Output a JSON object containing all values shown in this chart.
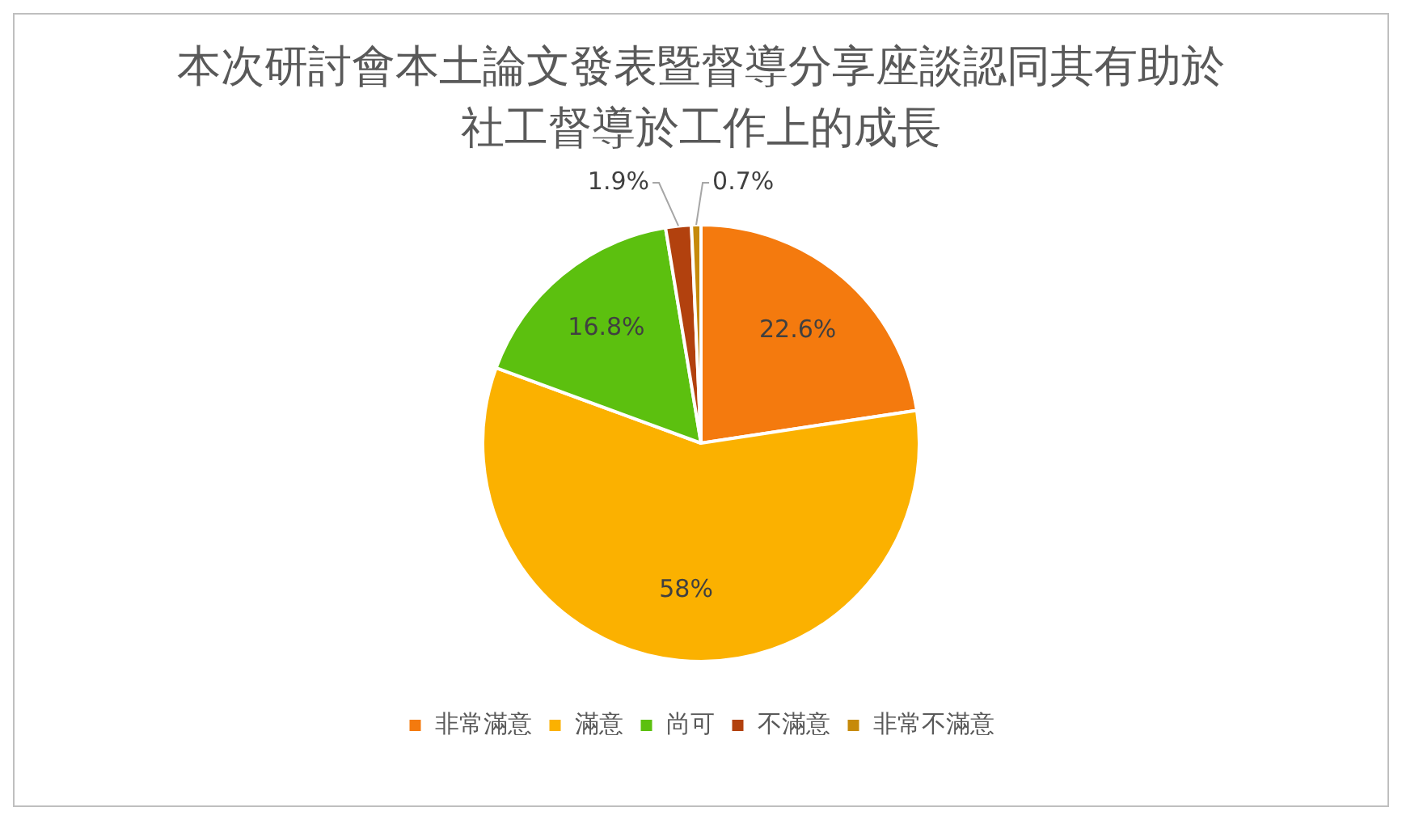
{
  "chart_data": {
    "type": "pie",
    "title": "本次研討會本土論文發表暨督導分享座談認同其有助於社工督導於工作上的成長",
    "categories": [
      "非常滿意",
      "滿意",
      "尚可",
      "不滿意",
      "非常不滿意"
    ],
    "values": [
      22.6,
      58,
      16.8,
      1.9,
      0.7
    ],
    "value_labels": [
      "22.6%",
      "58%",
      "16.8%",
      "1.9%",
      "0.7%"
    ],
    "colors": [
      "#f47a0e",
      "#fbb100",
      "#5cc00f",
      "#b2410e",
      "#c68a0a"
    ],
    "legend": "bottom"
  }
}
